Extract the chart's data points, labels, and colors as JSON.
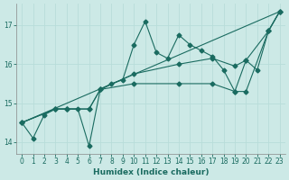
{
  "xlabel": "Humidex (Indice chaleur)",
  "background_color": "#cce9e6",
  "line_color": "#1a6b60",
  "grid_color": "#b8ddd9",
  "xlim": [
    -0.5,
    23.5
  ],
  "ylim": [
    13.7,
    17.55
  ],
  "yticks": [
    14,
    15,
    16,
    17
  ],
  "xticks": [
    0,
    1,
    2,
    3,
    4,
    5,
    6,
    7,
    8,
    9,
    10,
    11,
    12,
    13,
    14,
    15,
    16,
    17,
    18,
    19,
    20,
    21,
    22,
    23
  ],
  "line1_x": [
    0,
    1,
    2,
    3,
    4,
    5,
    6,
    7,
    8,
    9,
    10,
    11,
    12,
    13,
    14,
    15,
    16,
    17,
    18,
    19,
    20,
    21,
    22,
    23
  ],
  "line1_y": [
    14.5,
    14.1,
    14.7,
    14.85,
    14.85,
    14.85,
    13.9,
    15.35,
    15.5,
    15.6,
    16.5,
    17.1,
    16.3,
    16.15,
    16.75,
    16.5,
    16.35,
    16.2,
    15.85,
    15.3,
    16.1,
    15.85,
    16.85,
    17.35
  ],
  "line2_x": [
    0,
    3,
    4,
    6,
    7,
    10,
    14,
    17,
    19,
    20,
    22,
    23
  ],
  "line2_y": [
    14.5,
    14.85,
    14.85,
    14.85,
    15.35,
    15.75,
    16.0,
    16.15,
    15.95,
    16.1,
    16.85,
    17.35
  ],
  "line3_x": [
    0,
    3,
    4,
    6,
    7,
    10,
    14,
    17,
    19,
    20,
    22,
    23
  ],
  "line3_y": [
    14.5,
    14.85,
    14.85,
    14.85,
    15.35,
    15.5,
    15.5,
    15.5,
    15.3,
    15.3,
    16.85,
    17.35
  ],
  "line4_x": [
    0,
    23
  ],
  "line4_y": [
    14.5,
    17.35
  ]
}
